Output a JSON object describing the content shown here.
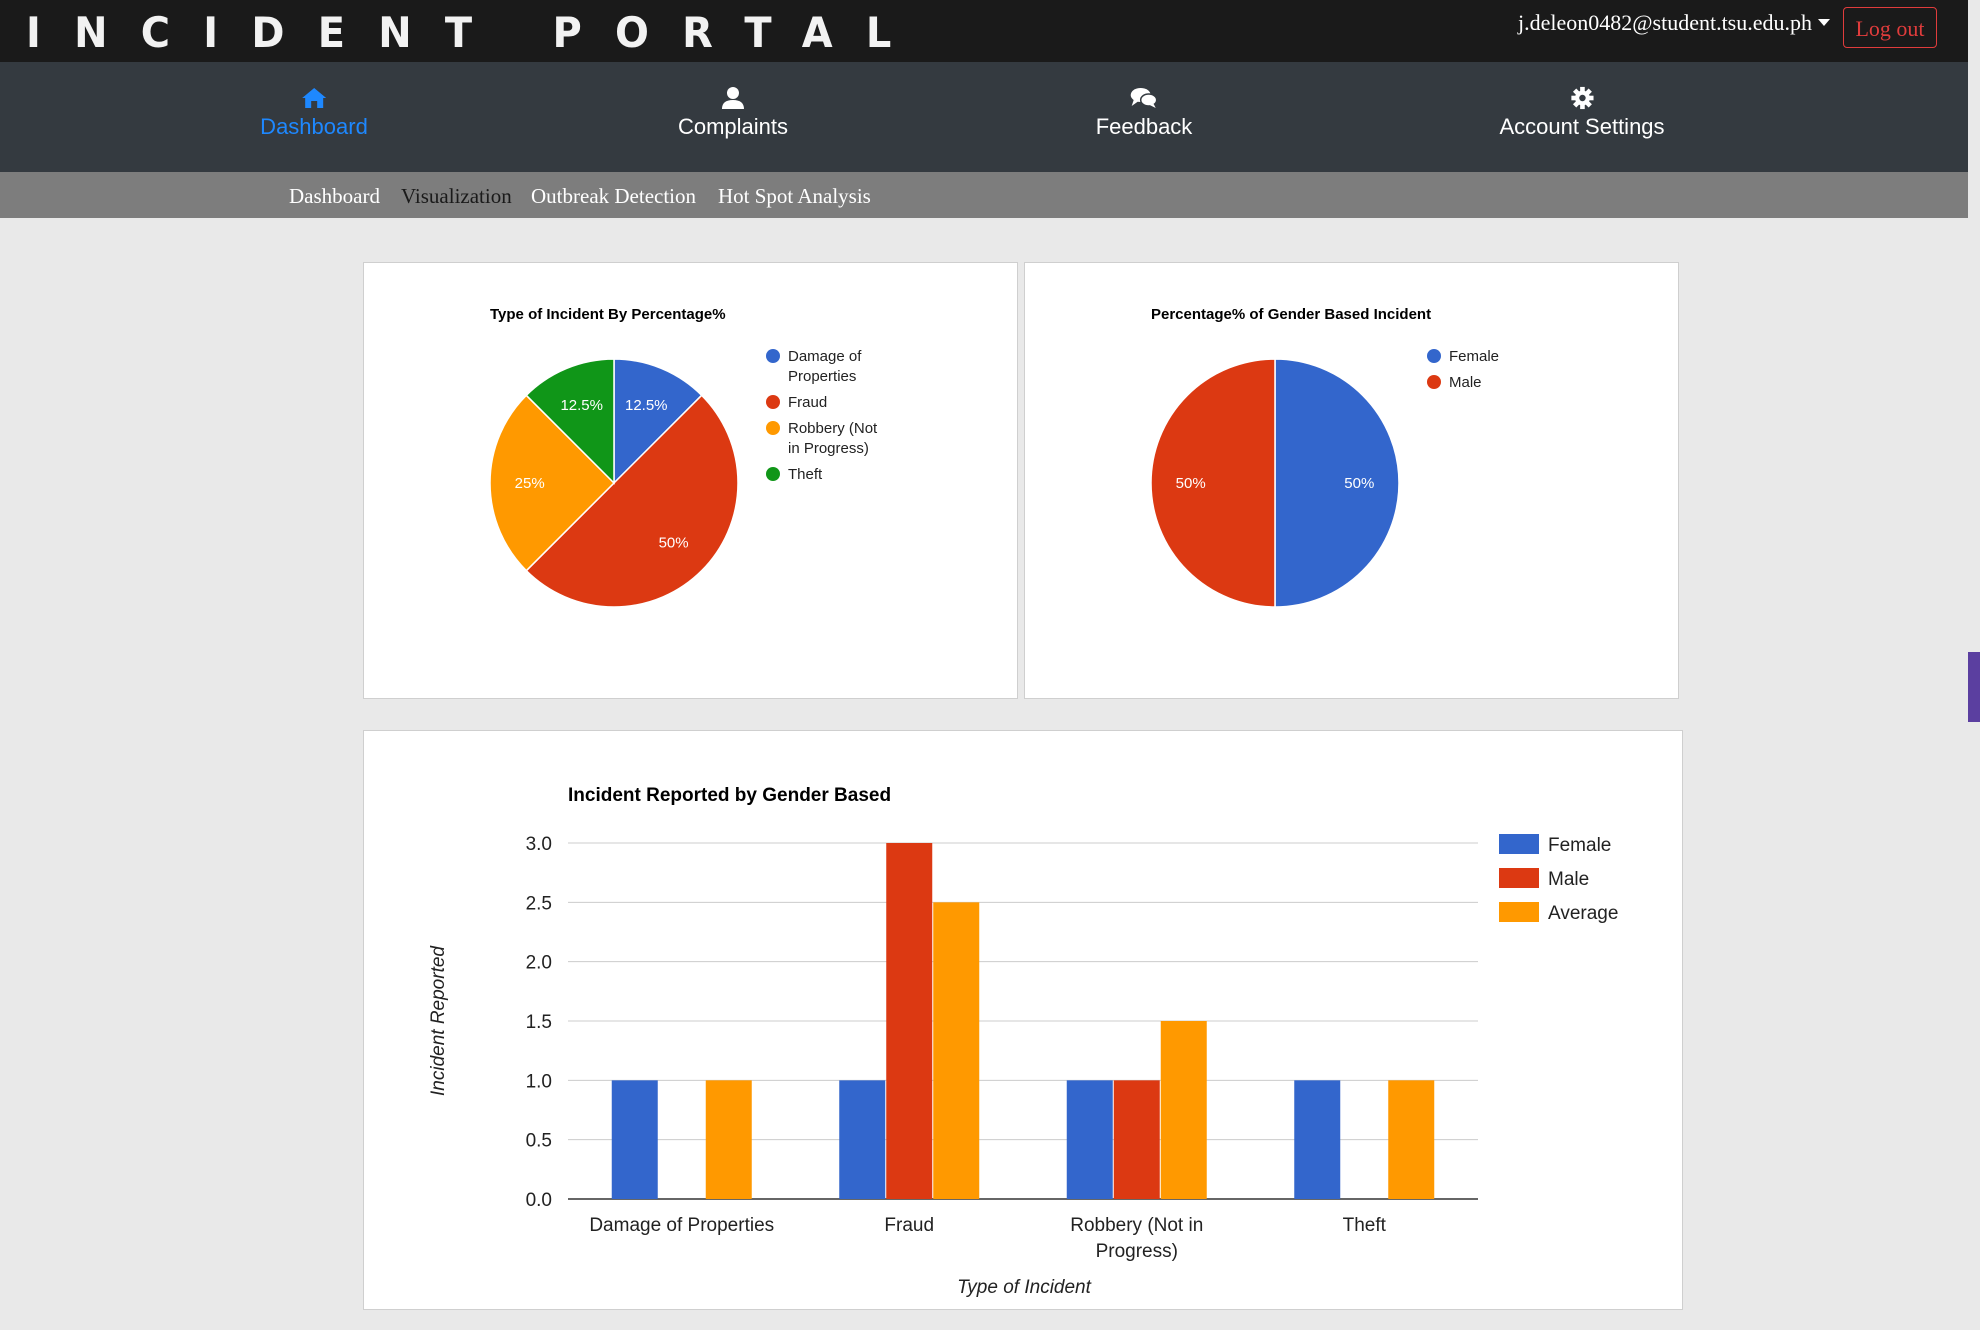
{
  "header": {
    "app_title": "INCIDENT PORTAL",
    "user_email": "j.deleon0482@student.tsu.edu.ph",
    "logout_label": "Log out"
  },
  "nav": {
    "items": [
      {
        "label": "Dashboard",
        "icon": "home-icon",
        "active": true
      },
      {
        "label": "Complaints",
        "icon": "user-icon",
        "active": false
      },
      {
        "label": "Feedback",
        "icon": "comments-icon",
        "active": false
      },
      {
        "label": "Account Settings",
        "icon": "gear-icon",
        "active": false
      }
    ],
    "active_color": "#1e88ff"
  },
  "subnav": {
    "items": [
      "Dashboard",
      "Visualization",
      "Outbreak Detection",
      "Hot Spot Analysis"
    ],
    "current": "Visualization"
  },
  "chart_data": [
    {
      "type": "pie",
      "title": "Type of Incident By Percentage%",
      "labels": [
        "Damage of Properties",
        "Fraud",
        "Robbery (Not in Progress)",
        "Theft"
      ],
      "legend_lines": [
        [
          "Damage of",
          "Properties"
        ],
        [
          "Fraud"
        ],
        [
          "Robbery (Not",
          "in Progress)"
        ],
        [
          "Theft"
        ]
      ],
      "values": [
        12.5,
        50,
        25,
        12.5
      ],
      "slice_labels": [
        "12.5%",
        "50%",
        "25%",
        "12.5%"
      ],
      "colors": [
        "#3366cc",
        "#dc3912",
        "#ff9900",
        "#109618"
      ],
      "legend_position": "right"
    },
    {
      "type": "pie",
      "title": "Percentage% of Gender Based Incident",
      "labels": [
        "Female",
        "Male"
      ],
      "values": [
        50,
        50
      ],
      "slice_labels": [
        "50%",
        "50%"
      ],
      "colors": [
        "#3366cc",
        "#dc3912"
      ],
      "legend_position": "right"
    },
    {
      "type": "bar",
      "title": "Incident Reported by Gender Based",
      "categories": [
        "Damage of Properties",
        "Fraud",
        "Robbery (Not in Progress)",
        "Theft"
      ],
      "category_lines": [
        [
          "Damage of Properties"
        ],
        [
          "Fraud"
        ],
        [
          "Robbery (Not in",
          "Progress)"
        ],
        [
          "Theft"
        ]
      ],
      "series": [
        {
          "name": "Female",
          "values": [
            1,
            1,
            1,
            1
          ],
          "color": "#3366cc"
        },
        {
          "name": "Male",
          "values": [
            0,
            3,
            1,
            0
          ],
          "color": "#dc3912"
        },
        {
          "name": "Average",
          "values": [
            1,
            2.5,
            1.5,
            1
          ],
          "color": "#ff9900"
        }
      ],
      "ylim": [
        0,
        3
      ],
      "yticks": [
        "0.0",
        "0.5",
        "1.0",
        "1.5",
        "2.0",
        "2.5",
        "3.0"
      ],
      "xlabel": "Type of Incident",
      "ylabel": "Incident Reported",
      "grid": true,
      "legend_position": "right"
    }
  ]
}
